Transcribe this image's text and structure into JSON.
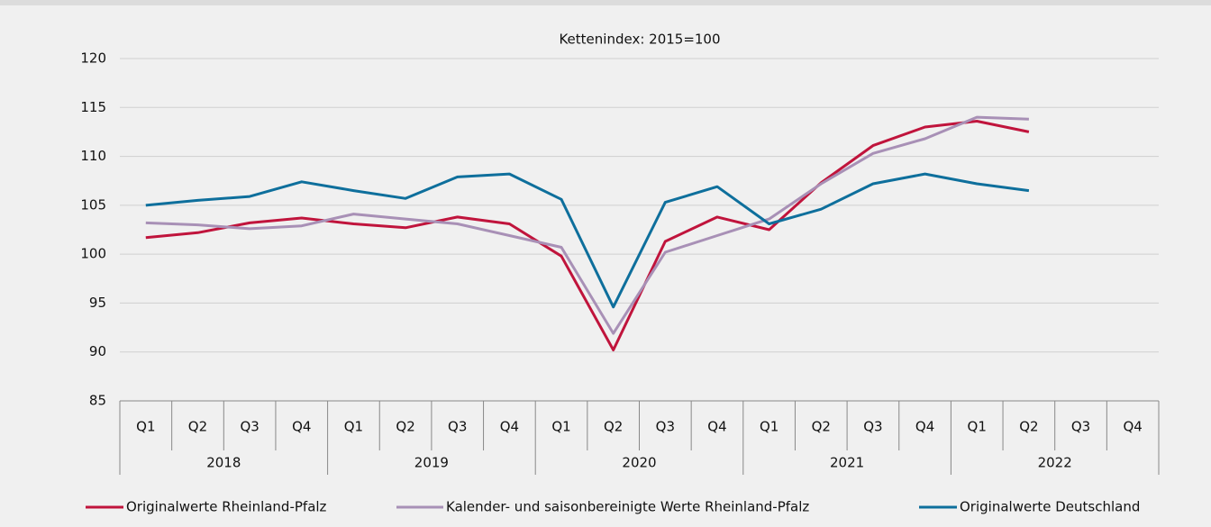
{
  "chart_data": {
    "type": "line",
    "title": "Kettenindex: 2015=100",
    "categories": [
      "Q1",
      "Q2",
      "Q3",
      "Q4",
      "Q1",
      "Q2",
      "Q3",
      "Q4",
      "Q1",
      "Q2",
      "Q3",
      "Q4",
      "Q1",
      "Q2",
      "Q3",
      "Q4",
      "Q1",
      "Q2",
      "Q3",
      "Q4"
    ],
    "category_groups": [
      "2018",
      "2019",
      "2020",
      "2021",
      "2022"
    ],
    "series": [
      {
        "name": "Originalwerte Rheinland-Pfalz",
        "color": "#c0143c",
        "values": [
          101.7,
          102.2,
          103.2,
          103.7,
          103.1,
          102.7,
          103.8,
          103.1,
          99.8,
          90.2,
          101.3,
          103.8,
          102.5,
          107.3,
          111.1,
          113.0,
          113.6,
          112.5,
          null,
          null
        ]
      },
      {
        "name": "Kalender- und saisonbereinigte Werte Rheinland-Pfalz",
        "color": "#a890b6",
        "values": [
          103.2,
          103.0,
          102.6,
          102.9,
          104.1,
          103.6,
          103.1,
          101.9,
          100.7,
          91.9,
          100.2,
          101.9,
          103.6,
          107.2,
          110.3,
          111.8,
          114.0,
          113.8,
          null,
          null
        ]
      },
      {
        "name": "Originalwerte Deutschland",
        "color": "#0e6f9c",
        "values": [
          105.0,
          105.5,
          105.9,
          107.4,
          106.5,
          105.7,
          107.9,
          108.2,
          105.6,
          94.6,
          105.3,
          106.9,
          103.1,
          104.6,
          107.2,
          108.2,
          107.2,
          106.5,
          null,
          null
        ]
      }
    ],
    "ylim": [
      85,
      120
    ],
    "yticks": [
      85,
      90,
      95,
      100,
      105,
      110,
      115,
      120
    ],
    "grid": true
  }
}
